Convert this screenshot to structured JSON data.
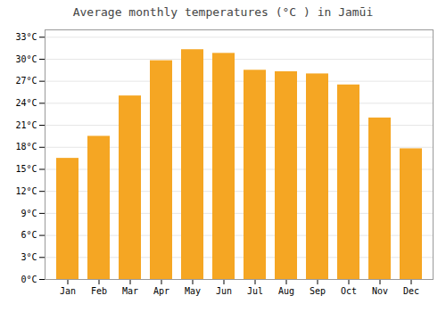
{
  "chart_data": {
    "type": "bar",
    "title": "Average monthly temperatures (°C ) in Jamūi",
    "categories": [
      "Jan",
      "Feb",
      "Mar",
      "Apr",
      "May",
      "Jun",
      "Jul",
      "Aug",
      "Sep",
      "Oct",
      "Nov",
      "Dec"
    ],
    "values": [
      16.5,
      19.5,
      25.0,
      29.8,
      31.3,
      30.8,
      28.5,
      28.3,
      28.0,
      26.5,
      22.0,
      17.8
    ],
    "color": "#F5A623",
    "ylim": [
      0,
      34
    ],
    "yticks": [
      {
        "value": 0,
        "label": "0°C"
      },
      {
        "value": 3,
        "label": "3°C"
      },
      {
        "value": 6,
        "label": "6°C"
      },
      {
        "value": 9,
        "label": "9°C"
      },
      {
        "value": 12,
        "label": "12°C"
      },
      {
        "value": 15,
        "label": "15°C"
      },
      {
        "value": 18,
        "label": "18°C"
      },
      {
        "value": 21,
        "label": "21°C"
      },
      {
        "value": 24,
        "label": "24°C"
      },
      {
        "value": 27,
        "label": "27°C"
      },
      {
        "value": 30,
        "label": "30°C"
      },
      {
        "value": 33,
        "label": "33°C"
      }
    ],
    "grid": true
  }
}
